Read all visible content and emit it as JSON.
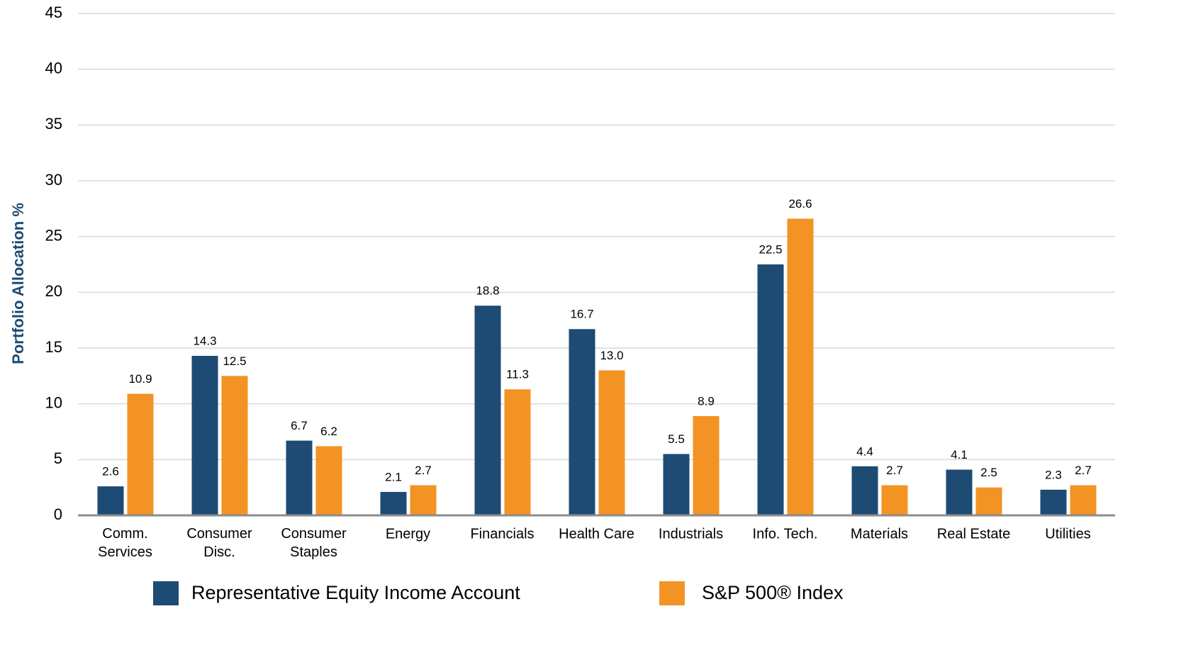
{
  "chart_data": {
    "type": "bar",
    "y_label": "Portfolio Allocation %",
    "categories": [
      "Comm.\nServices",
      "Consumer\nDisc.",
      "Consumer\nStaples",
      "Energy",
      "Financials",
      "Health Care",
      "Industrials",
      "Info. Tech.",
      "Materials",
      "Real Estate",
      "Utilities"
    ],
    "series": [
      {
        "name": "Representative Equity Income Account",
        "color": "#1d4b73",
        "values": [
          2.6,
          14.3,
          6.7,
          2.1,
          18.8,
          16.7,
          5.5,
          22.5,
          4.4,
          4.1,
          2.3
        ],
        "value_labels": [
          "2.6",
          "14.3",
          "6.7",
          "2.1",
          "18.8",
          "16.7",
          "5.5",
          "22.5",
          "4.4",
          "4.1",
          "2.3"
        ]
      },
      {
        "name": "S&P 500® Index",
        "color": "#f39324",
        "values": [
          10.9,
          12.5,
          6.2,
          2.7,
          11.3,
          13.0,
          8.9,
          26.6,
          2.7,
          2.5,
          2.7
        ],
        "value_labels": [
          "10.9",
          "12.5",
          "6.2",
          "2.7",
          "11.3",
          "13.0",
          "8.9",
          "26.6",
          "2.7",
          "2.5",
          "2.7"
        ]
      }
    ],
    "ylim": [
      0,
      45
    ],
    "yticks": [
      0,
      5,
      10,
      15,
      20,
      25,
      30,
      35,
      40,
      45
    ],
    "grid": true
  }
}
